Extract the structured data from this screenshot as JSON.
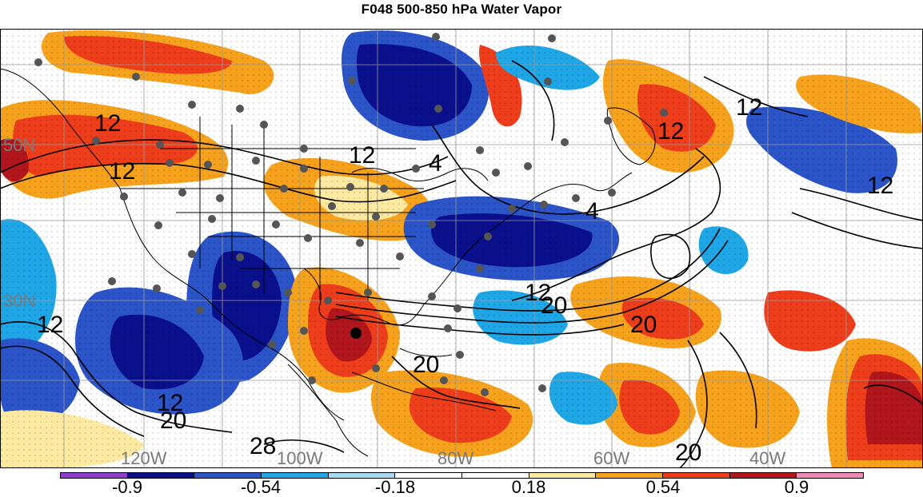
{
  "title": "F048 500-850 hPa Water Vapor",
  "map": {
    "lat_labels": [
      "50N",
      "30N"
    ],
    "lon_labels": [
      "120W",
      "100W",
      "80W",
      "60W",
      "40W"
    ],
    "contour_labels": [
      "12",
      "12",
      "12",
      "4",
      "12",
      "12",
      "4",
      "12",
      "20",
      "20",
      "12",
      "12",
      "20",
      "28",
      "20",
      "20",
      "12"
    ],
    "colors": {
      "ocean_bg": "#ffffff",
      "coast": "#000000",
      "grid": "#9a9a9a",
      "contour": "#000000",
      "dots": "#555555"
    }
  },
  "colorbar": {
    "colors": [
      "#8a3fd1",
      "#0a0f8c",
      "#2a54c8",
      "#1ea6e6",
      "#a9d9f5",
      "#ffffff",
      "#ffffff",
      "#fde9a0",
      "#f6a21c",
      "#ee3d1b",
      "#b0161b",
      "#f08bb8"
    ],
    "tick_labels": [
      "-0.9",
      "-0.54",
      "-0.18",
      "0.18",
      "0.54",
      "0.9"
    ]
  }
}
